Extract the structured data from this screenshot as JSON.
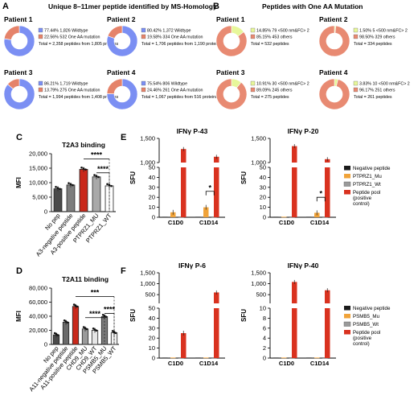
{
  "colors": {
    "blue": "#7b8ff3",
    "salmon": "#e5836a",
    "yellowgreen": "#e7f79a",
    "salmon_pie": "#e88a72",
    "black": "#1a1a1a",
    "orange": "#f0a33a",
    "gray": "#9a9a9a",
    "red": "#d9321f",
    "darkred": "#c9281a"
  },
  "panelA": {
    "letter": "A",
    "title": "Unique 8–11mer peptide identified by MS-Homology",
    "patients": [
      {
        "name": "Patient 1",
        "slices": [
          77.44,
          22.56
        ],
        "legend": [
          "77.44% 1,826 Wildtype",
          "22.56% 532 One AA mutation"
        ],
        "total": "Total = 2,358 peptides from 1,805 proteins"
      },
      {
        "name": "Patient 2",
        "slices": [
          80.42,
          19.58
        ],
        "legend": [
          "80.42% 1,372 Wildtype",
          "19.58% 334 One AA mutation"
        ],
        "total": "Total = 1,706 peptides from 1,190 proteins"
      },
      {
        "name": "Patient 3",
        "slices": [
          86.21,
          13.79
        ],
        "legend": [
          "86.21% 1,719 Wildtype",
          "13.79% 275 One AA mutation"
        ],
        "total": "Total = 1,994 peptides from 1,408 proteins"
      },
      {
        "name": "Patient 4",
        "slices": [
          75.54,
          24.46
        ],
        "legend": [
          "75.54% 806 Wildtype",
          "24.46% 261 One AA mutation"
        ],
        "total": "Total = 1,067 peptides from 516 proteins"
      }
    ]
  },
  "panelB": {
    "letter": "B",
    "title": "Peptides with One AA Mutation",
    "patients": [
      {
        "name": "Patient 1",
        "slices": [
          14.85,
          85.15
        ],
        "legend": [
          "14.85% 79 <500 nm&FC> 2",
          "85.15% 453 others"
        ],
        "total": "Total = 532 peptides"
      },
      {
        "name": "Patient 2",
        "slices": [
          1.5,
          98.5
        ],
        "legend": [
          "1.50% 5 <500 nm&FC> 2",
          "98.50% 329 others"
        ],
        "total": "Total = 334 peptides"
      },
      {
        "name": "Patient 3",
        "slices": [
          10.91,
          89.09
        ],
        "legend": [
          "10.91% 30 <500 nm&FC> 2",
          "89.09% 245 others"
        ],
        "total": "Total = 275 peptides"
      },
      {
        "name": "Patient 4",
        "slices": [
          3.83,
          96.17
        ],
        "legend": [
          "3.83% 10 <500 nm&FC> 2",
          "96.17% 251 others"
        ],
        "total": "Total = 261 peptides"
      }
    ]
  },
  "chart_data": [
    {
      "panel": "C",
      "type": "bar",
      "title": "T2A3 binding",
      "ylabel": "MFI",
      "ylim": [
        0,
        20000
      ],
      "yticks": [
        "0",
        "5,000",
        "10,000",
        "15,000",
        "20,000"
      ],
      "categories": [
        "No pep",
        "A3-negative peptide",
        "A3-positive peptide",
        "PTPRZ1_MU",
        "PTPRZ1_WT"
      ],
      "values": [
        7900,
        9200,
        14600,
        12000,
        8900
      ],
      "significance": [
        "****",
        "****"
      ]
    },
    {
      "panel": "D",
      "type": "bar",
      "title": "T2A11 binding",
      "ylabel": "MFI",
      "ylim": [
        0,
        80000
      ],
      "yticks": [
        "0",
        "20,000",
        "40,000",
        "60,000",
        "80,000"
      ],
      "categories": [
        "No pep",
        "A11-negative peptide",
        "A11-positive peptide",
        "CHD9_MU",
        "CHD9_WT",
        "PSMB5_MU",
        "PSMB5_WT"
      ],
      "values": [
        13500,
        31500,
        54000,
        22000,
        20000,
        39500,
        16500
      ],
      "significance": [
        "***",
        "****",
        "****"
      ]
    },
    {
      "panel": "E",
      "type": "bar",
      "title": "IFNγ P-43",
      "ylabel": "SFU",
      "yticks": [
        "0",
        "10",
        "20",
        "30",
        "40",
        "50",
        "1,000",
        "1,500"
      ],
      "groups": [
        "C1D0",
        "C1D14"
      ],
      "series": [
        {
          "name": "Negative peptide",
          "values": [
            0.5,
            0.5
          ]
        },
        {
          "name": "PTPRZ1_Mu",
          "values": [
            5,
            10
          ]
        },
        {
          "name": "PTPRZ1_Wt",
          "values": [
            0.5,
            0.5
          ]
        },
        {
          "name": "Peptide pool (positive control)",
          "values": [
            1280,
            1120
          ]
        }
      ],
      "significance": [
        "*"
      ]
    },
    {
      "panel": "E",
      "type": "bar",
      "title": "IFNγ P-20",
      "ylabel": "SFU",
      "yticks": [
        "0",
        "10",
        "20",
        "30",
        "40",
        "50",
        "1,000",
        "1,500"
      ],
      "groups": [
        "C1D0",
        "C1D14"
      ],
      "series": [
        {
          "name": "Negative peptide",
          "values": [
            0.5,
            0.5
          ]
        },
        {
          "name": "PTPRZ1_Mu",
          "values": [
            0.5,
            4.5
          ]
        },
        {
          "name": "PTPRZ1_Wt",
          "values": [
            0.5,
            0.5
          ]
        },
        {
          "name": "Peptide pool (positive control)",
          "values": [
            1340,
            1070
          ]
        }
      ],
      "significance": [
        "*"
      ]
    },
    {
      "panel": "F",
      "type": "bar",
      "title": "IFNγ P-6",
      "ylabel": "SFU",
      "yticks": [
        "0",
        "10",
        "20",
        "30",
        "40",
        "50",
        "500",
        "1,000",
        "1,500"
      ],
      "groups": [
        "C1D0",
        "C1D14"
      ],
      "series": [
        {
          "name": "Negative peptide",
          "values": [
            0.5,
            0.5
          ]
        },
        {
          "name": "PSMB5_Mu",
          "values": [
            0.5,
            0.5
          ]
        },
        {
          "name": "PSMB5_Wt",
          "values": [
            0.5,
            0.5
          ]
        },
        {
          "name": "Peptide pool (positive control)",
          "values": [
            25,
            600
          ]
        }
      ]
    },
    {
      "panel": "F",
      "type": "bar",
      "title": "IFNγ P-40",
      "ylabel": "SFU",
      "yticks": [
        "0",
        "2",
        "4",
        "6",
        "8",
        "10",
        "500",
        "1,000",
        "1,500"
      ],
      "groups": [
        "C1D0",
        "C1D14"
      ],
      "series": [
        {
          "name": "Negative peptide",
          "values": [
            0.1,
            0.1
          ]
        },
        {
          "name": "PSMB5_Mu",
          "values": [
            0.1,
            0.1
          ]
        },
        {
          "name": "PSMB5_Wt",
          "values": [
            0.1,
            0.1
          ]
        },
        {
          "name": "Peptide pool (positive control)",
          "values": [
            1080,
            700
          ]
        }
      ]
    }
  ],
  "letters": {
    "C": "C",
    "D": "D",
    "E": "E",
    "F": "F"
  },
  "legendE": [
    "Negative peptide",
    "PTPRZ1_Mu",
    "PTPRZ1_Wt",
    "Peptide pool",
    "(positive",
    "control)"
  ],
  "legendF": [
    "Negative peptide",
    "PSMB5_Mu",
    "PSMB5_Wt",
    "Peptide pool",
    "(positive",
    "control)"
  ]
}
